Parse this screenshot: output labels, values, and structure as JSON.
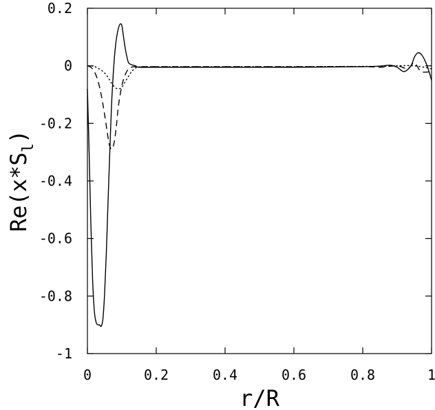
{
  "chart_data": {
    "type": "line",
    "title": "",
    "xlabel": "r/R",
    "ylabel_main": "Re(x*S",
    "ylabel_sub": "l",
    "ylabel_close": ")",
    "xlim": [
      0,
      1
    ],
    "ylim": [
      -1,
      0.2
    ],
    "xticks": [
      0,
      0.2,
      0.4,
      0.6,
      0.8,
      1
    ],
    "xtick_labels": [
      "0",
      "0.2",
      "0.4",
      "0.6",
      "0.8",
      "1"
    ],
    "yticks": [
      0.2,
      0,
      -0.2,
      -0.4,
      -0.6,
      -0.8,
      -1
    ],
    "ytick_labels": [
      "0.2",
      "0",
      "-0.2",
      "-0.4",
      "-0.6",
      "-0.8",
      "-1"
    ],
    "grid": false,
    "legend": "none",
    "series": [
      {
        "style": "solid",
        "x": [
          0,
          0.005,
          0.01,
          0.015,
          0.02,
          0.025,
          0.03,
          0.035,
          0.04,
          0.045,
          0.05,
          0.055,
          0.06,
          0.065,
          0.07,
          0.075,
          0.08,
          0.085,
          0.09,
          0.095,
          0.1,
          0.105,
          0.11,
          0.115,
          0.12,
          0.13,
          0.14,
          0.15,
          0.2,
          0.4,
          0.6,
          0.8,
          0.85,
          0.88,
          0.9,
          0.92,
          0.94,
          0.95,
          0.96,
          0.97,
          0.98,
          0.99,
          1.0
        ],
        "y": [
          -0.08,
          -0.3,
          -0.55,
          -0.74,
          -0.85,
          -0.89,
          -0.9,
          -0.9,
          -0.905,
          -0.88,
          -0.79,
          -0.65,
          -0.47,
          -0.3,
          -0.14,
          -0.03,
          0.05,
          0.1,
          0.13,
          0.145,
          0.14,
          0.1,
          0.06,
          0.03,
          0.01,
          0.003,
          0.0,
          -0.005,
          -0.005,
          -0.005,
          -0.005,
          -0.003,
          -0.001,
          0.002,
          -0.005,
          -0.02,
          0.0,
          0.03,
          0.045,
          0.04,
          0.02,
          -0.01,
          -0.05
        ]
      },
      {
        "style": "dashed",
        "x": [
          0,
          0.01,
          0.02,
          0.03,
          0.04,
          0.05,
          0.06,
          0.065,
          0.07,
          0.075,
          0.08,
          0.085,
          0.09,
          0.1,
          0.11,
          0.12,
          0.13,
          0.14,
          0.15,
          0.2,
          0.4,
          0.6,
          0.8,
          0.85,
          0.9,
          0.93,
          0.95,
          0.97,
          1.0
        ],
        "y": [
          0.0,
          -0.005,
          -0.02,
          -0.05,
          -0.1,
          -0.17,
          -0.25,
          -0.28,
          -0.29,
          -0.28,
          -0.25,
          -0.2,
          -0.14,
          -0.07,
          -0.03,
          -0.01,
          -0.004,
          -0.003,
          -0.003,
          -0.003,
          -0.003,
          -0.003,
          -0.003,
          -0.005,
          0.0,
          -0.01,
          0.01,
          -0.02,
          -0.02
        ]
      },
      {
        "style": "dotted",
        "x": [
          0,
          0.01,
          0.02,
          0.03,
          0.04,
          0.05,
          0.06,
          0.07,
          0.08,
          0.09,
          0.1,
          0.11,
          0.12,
          0.13,
          0.14,
          0.15,
          0.2,
          0.4,
          0.6,
          0.8,
          0.85,
          0.9,
          0.95,
          1.0
        ],
        "y": [
          0.0,
          0.0,
          -0.002,
          -0.008,
          -0.015,
          -0.025,
          -0.04,
          -0.06,
          -0.075,
          -0.08,
          -0.075,
          -0.055,
          -0.035,
          -0.018,
          -0.008,
          -0.004,
          -0.003,
          -0.003,
          -0.003,
          -0.002,
          -0.002,
          0.0,
          0.0,
          -0.01
        ]
      }
    ]
  }
}
